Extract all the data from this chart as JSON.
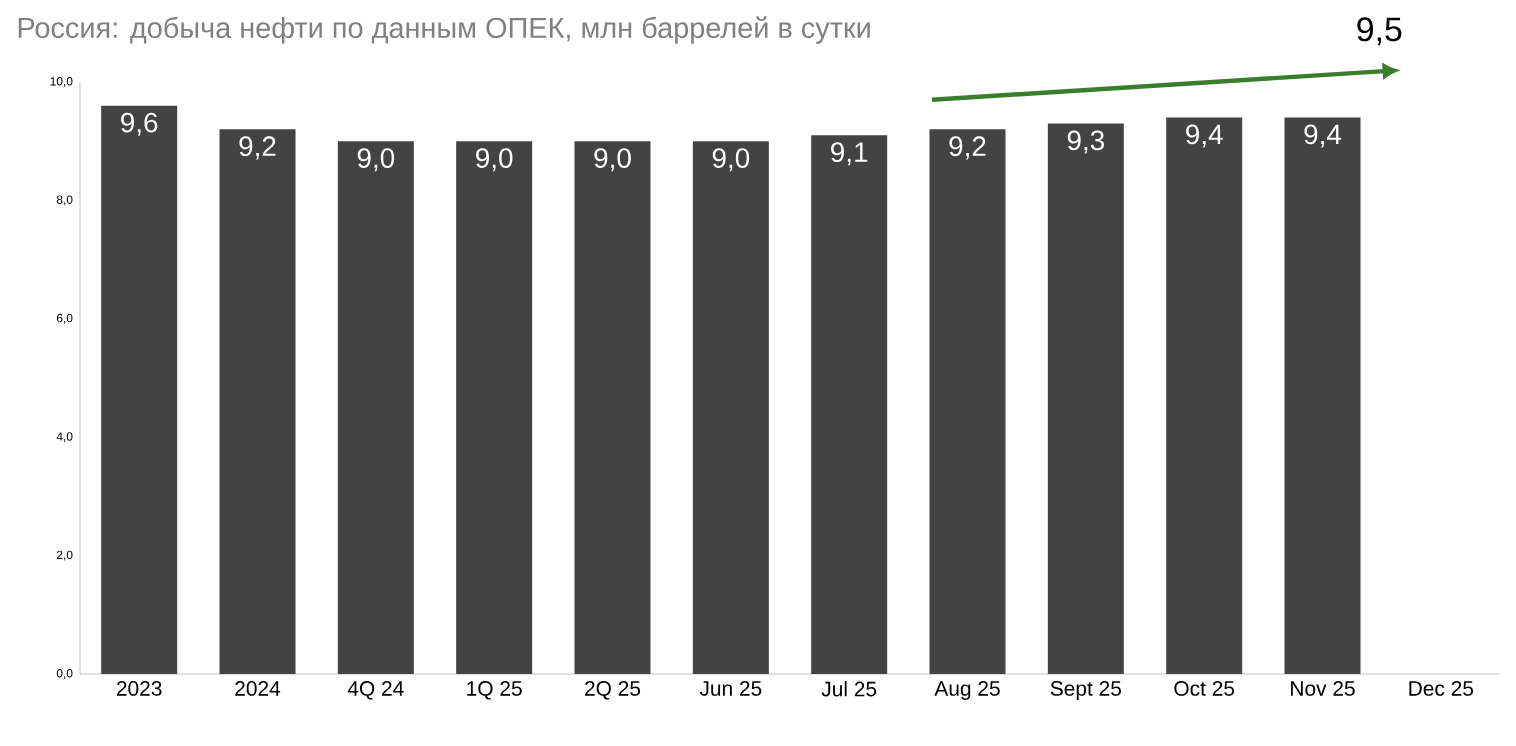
{
  "chart_data": {
    "type": "bar",
    "title": "Россия: добыча нефти по данным ОПЕК, млн баррелей в сутки",
    "categories": [
      "2023",
      "2024",
      "4Q 24",
      "1Q 25",
      "2Q 25",
      "Jun 25",
      "Jul 25",
      "Aug 25",
      "Sept 25",
      "Oct 25",
      "Nov 25",
      "Dec 25"
    ],
    "values": [
      9.6,
      9.2,
      9.0,
      9.0,
      9.0,
      9.0,
      9.1,
      9.2,
      9.3,
      9.4,
      9.4,
      null
    ],
    "value_labels": [
      "9,6",
      "9,2",
      "9,0",
      "9,0",
      "9,0",
      "9,0",
      "9,1",
      "9,2",
      "9,3",
      "9,4",
      "9,4",
      null
    ],
    "color": "#434343",
    "ylim": [
      0,
      10
    ],
    "yticks": [
      {
        "value": 0,
        "label": "0,0"
      },
      {
        "value": 2,
        "label": "2,0"
      },
      {
        "value": 4,
        "label": "4,0"
      },
      {
        "value": 6,
        "label": "6,0"
      },
      {
        "value": 8,
        "label": "8,0"
      },
      {
        "value": 10,
        "label": "10,0"
      }
    ],
    "annotations": [
      "9,5"
    ]
  }
}
